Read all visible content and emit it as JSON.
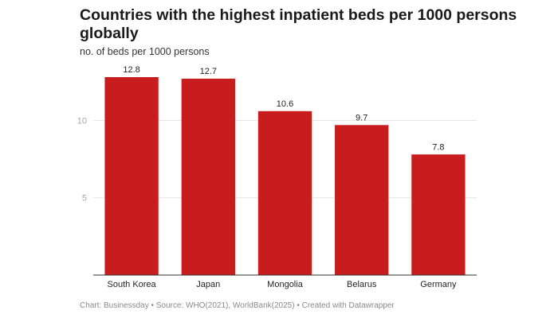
{
  "title": "Countries with the highest inpatient beds per 1000 persons globally",
  "subtitle": "no. of beds per 1000 persons",
  "footer": "Chart: Businessday • Source: WHO(2021), WorldBank(2025) • Created with Datawrapper",
  "colors": {
    "bar": "#c81d1e",
    "grid": "#e6e6e6",
    "axis": "#333333",
    "tick": "#a6a6a6"
  },
  "chart_data": {
    "type": "bar",
    "categories": [
      "South Korea",
      "Japan",
      "Mongolia",
      "Belarus",
      "Germany"
    ],
    "values": [
      12.8,
      12.7,
      10.6,
      9.7,
      7.8
    ],
    "value_labels": [
      "12.8",
      "12.7",
      "10.6",
      "9.7",
      "7.8"
    ],
    "title": "Countries with the highest inpatient beds per 1000 persons globally",
    "subtitle": "no. of beds per 1000 persons",
    "ylim": [
      0,
      12.8
    ],
    "yticks": [
      5,
      10
    ],
    "ytick_labels": [
      "5",
      "10"
    ],
    "grid": true,
    "legend": "none"
  }
}
